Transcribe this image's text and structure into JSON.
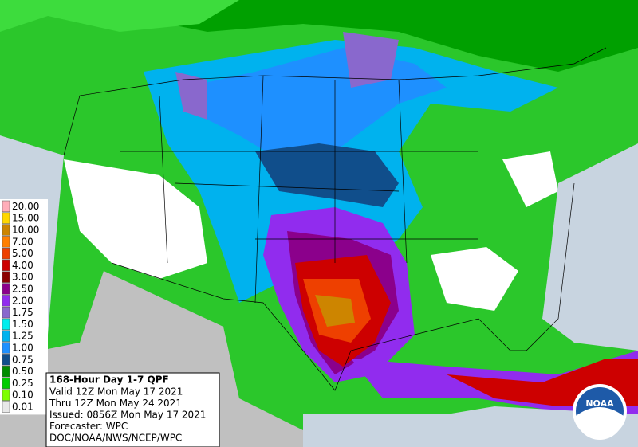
{
  "legend": {
    "items": [
      {
        "label": "20.00",
        "color": "#ffaeb9"
      },
      {
        "label": "15.00",
        "color": "#ffd700"
      },
      {
        "label": "10.00",
        "color": "#cd8500"
      },
      {
        "label": "7.00",
        "color": "#ff7f00"
      },
      {
        "label": "5.00",
        "color": "#ee4000"
      },
      {
        "label": "4.00",
        "color": "#cd0000"
      },
      {
        "label": "3.00",
        "color": "#8b0000"
      },
      {
        "label": "2.50",
        "color": "#8b008b"
      },
      {
        "label": "2.00",
        "color": "#912cee"
      },
      {
        "label": "1.75",
        "color": "#8968cd"
      },
      {
        "label": "1.50",
        "color": "#00eeee"
      },
      {
        "label": "1.25",
        "color": "#00b2ee"
      },
      {
        "label": "1.00",
        "color": "#1e90ff"
      },
      {
        "label": "0.75",
        "color": "#104e8b"
      },
      {
        "label": "0.50",
        "color": "#008b00"
      },
      {
        "label": "0.25",
        "color": "#00cd00"
      },
      {
        "label": "0.10",
        "color": "#7fff00"
      },
      {
        "label": "0.01",
        "color": "#e8e8e8"
      }
    ]
  },
  "info": {
    "title": "168-Hour Day 1-7 QPF",
    "lines": [
      "Valid 12Z Mon May 17 2021",
      "Thru 12Z Mon May 24 2021",
      "Issued: 0856Z Mon May 17 2021",
      "Forecaster: WPC",
      "DOC/NOAA/NWS/NCEP/WPC"
    ]
  },
  "logo": {
    "text": "NOAA"
  }
}
